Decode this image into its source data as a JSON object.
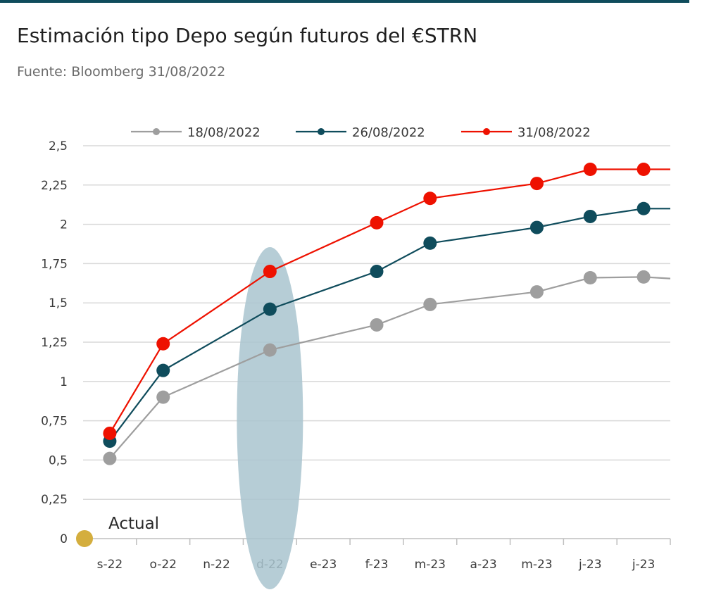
{
  "header": {
    "title": "Estimación tipo Depo según futuros del €STRN",
    "subtitle": "Fuente: Bloomberg 31/08/2022"
  },
  "chart_data": {
    "type": "line",
    "title": "Estimación tipo Depo según futuros del €STRN",
    "subtitle": "Fuente: Bloomberg 31/08/2022",
    "xlabel": "",
    "ylabel": "",
    "categories": [
      "s-22",
      "o-22",
      "n-22",
      "d-22",
      "e-23",
      "f-23",
      "m-23",
      "a-23",
      "m-23",
      "j-23",
      "j-23"
    ],
    "series_x_positions_note": "",
    "ylim": [
      0,
      2.5
    ],
    "yticks": [
      "0",
      "0,25",
      "0,5",
      "0,75",
      "1",
      "1,25",
      "1,5",
      "1,75",
      "2",
      "2,25",
      "2,5"
    ],
    "grid": "horizontal",
    "legend_position": "top",
    "series": [
      {
        "name": "18/08/2022",
        "color": "#9e9e9e",
        "points": [
          {
            "x": "s-22",
            "y": 0.51
          },
          {
            "x": "o-22",
            "y": 0.9
          },
          {
            "x": "d-22",
            "y": 1.2
          },
          {
            "x": "f-23",
            "y": 1.36
          },
          {
            "x": "m-23",
            "y": 1.49
          },
          {
            "x": "m-23 (2)",
            "y": 1.57
          },
          {
            "x": "j-23",
            "y": 1.66
          },
          {
            "x": "j-23 (2)",
            "y": 1.665
          },
          {
            "x": "end",
            "y": 1.655
          }
        ]
      },
      {
        "name": "26/08/2022",
        "color": "#0f4c5c",
        "points": [
          {
            "x": "s-22",
            "y": 0.62
          },
          {
            "x": "o-22",
            "y": 1.07
          },
          {
            "x": "d-22",
            "y": 1.46
          },
          {
            "x": "f-23",
            "y": 1.7
          },
          {
            "x": "m-23",
            "y": 1.88
          },
          {
            "x": "m-23 (2)",
            "y": 1.98
          },
          {
            "x": "j-23",
            "y": 2.05
          },
          {
            "x": "j-23 (2)",
            "y": 2.1
          },
          {
            "x": "end",
            "y": 2.1
          }
        ]
      },
      {
        "name": "31/08/2022",
        "color": "#ee1100",
        "points": [
          {
            "x": "s-22",
            "y": 0.67
          },
          {
            "x": "o-22",
            "y": 1.24
          },
          {
            "x": "d-22",
            "y": 1.7
          },
          {
            "x": "f-23",
            "y": 2.01
          },
          {
            "x": "m-23",
            "y": 2.165
          },
          {
            "x": "m-23 (2)",
            "y": 2.26
          },
          {
            "x": "j-23",
            "y": 2.35
          },
          {
            "x": "j-23 (2)",
            "y": 2.35
          },
          {
            "x": "end",
            "y": 2.35
          }
        ]
      }
    ],
    "annotations": [
      {
        "text": "Actual",
        "y": 0,
        "marker_color": "#d4ae3e"
      },
      {
        "shape": "ellipse-highlight",
        "category": "d-22",
        "color": "#a9c4cf"
      }
    ]
  }
}
